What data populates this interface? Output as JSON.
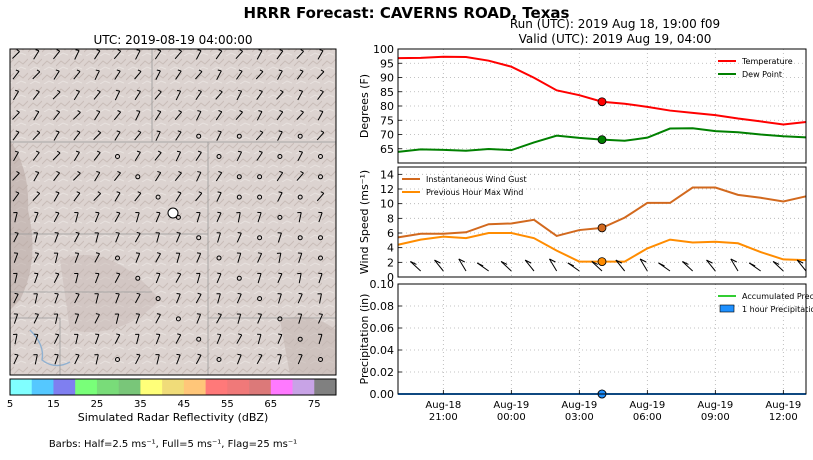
{
  "figure": {
    "title": "HRRR Forecast: CAVERNS ROAD, Texas",
    "map_title": "UTC: 2019-08-19 04:00:00",
    "run_line": "Run (UTC): 2019 Aug 18, 19:00 f09",
    "valid_line": "Valid (UTC): 2019 Aug 19, 04:00",
    "colorbar_label": "Simulated Radar Reflectivity (dBZ)",
    "colorbar_ticks": [
      "5",
      "15",
      "25",
      "35",
      "45",
      "55",
      "65",
      "75"
    ],
    "colorbar_colors": [
      "#80ffff",
      "#55c8ff",
      "#7f7ff0",
      "#79ff79",
      "#79dc79",
      "#79c679",
      "#ffff79",
      "#f0dc79",
      "#ffc679",
      "#ff7979",
      "#f07979",
      "#dc7979",
      "#ff79ff",
      "#c8a3e6",
      "#808080"
    ],
    "barbs_note": "Barbs: Half=2.5 ms⁻¹, Full=5 ms⁻¹, Flag=25 ms⁻¹"
  },
  "chart_data": [
    {
      "type": "line",
      "panel": "temperature",
      "x": [
        "2019-08-18 19:00",
        "2019-08-18 20:00",
        "2019-08-18 21:00",
        "2019-08-18 22:00",
        "2019-08-18 23:00",
        "2019-08-19 00:00",
        "2019-08-19 01:00",
        "2019-08-19 02:00",
        "2019-08-19 03:00",
        "2019-08-19 04:00",
        "2019-08-19 05:00",
        "2019-08-19 06:00",
        "2019-08-19 07:00",
        "2019-08-19 08:00",
        "2019-08-19 09:00",
        "2019-08-19 10:00",
        "2019-08-19 11:00",
        "2019-08-19 12:00",
        "2019-08-19 13:00"
      ],
      "series": [
        {
          "name": "Temperature",
          "color": "#ff0000",
          "values": [
            96.8,
            96.9,
            97.3,
            97.2,
            95.9,
            93.8,
            89.9,
            85.5,
            83.8,
            81.5,
            80.8,
            79.7,
            78.4,
            77.6,
            76.8,
            75.6,
            74.6,
            73.5,
            74.4
          ]
        },
        {
          "name": "Dew Point",
          "color": "#008000",
          "values": [
            63.9,
            64.8,
            64.6,
            64.3,
            64.9,
            64.5,
            67.2,
            69.6,
            68.8,
            68.2,
            67.8,
            68.9,
            72.1,
            72.2,
            71.2,
            70.8,
            70.0,
            69.4,
            69.0
          ]
        }
      ],
      "highlight_index": 9,
      "ylabel": "Degrees (F)",
      "ylim": [
        60,
        100
      ],
      "yticks": [
        "65",
        "70",
        "75",
        "80",
        "85",
        "90",
        "95",
        "100"
      ],
      "grid": true,
      "legend": "top-right"
    },
    {
      "type": "line",
      "panel": "wind",
      "x": [
        "2019-08-18 19:00",
        "2019-08-18 20:00",
        "2019-08-18 21:00",
        "2019-08-18 22:00",
        "2019-08-18 23:00",
        "2019-08-19 00:00",
        "2019-08-19 01:00",
        "2019-08-19 02:00",
        "2019-08-19 03:00",
        "2019-08-19 04:00",
        "2019-08-19 05:00",
        "2019-08-19 06:00",
        "2019-08-19 07:00",
        "2019-08-19 08:00",
        "2019-08-19 09:00",
        "2019-08-19 10:00",
        "2019-08-19 11:00",
        "2019-08-19 12:00",
        "2019-08-19 13:00"
      ],
      "series": [
        {
          "name": "Instantaneous Wind Gust",
          "color": "#d2691e",
          "values": [
            5.4,
            5.9,
            5.9,
            6.1,
            7.2,
            7.3,
            7.8,
            5.6,
            6.4,
            6.7,
            8.1,
            10.1,
            10.1,
            12.2,
            12.2,
            11.2,
            10.8,
            10.3,
            11.0
          ]
        },
        {
          "name": "Previous Hour Max Wind",
          "color": "#ff8c00",
          "values": [
            4.4,
            5.1,
            5.5,
            5.3,
            6.0,
            6.0,
            5.3,
            3.6,
            2.1,
            2.1,
            2.1,
            3.9,
            5.1,
            4.7,
            4.8,
            4.6,
            3.4,
            2.4,
            2.3
          ]
        }
      ],
      "highlight_index": 9,
      "ylabel": "Wind Speed (ms⁻¹)",
      "ylim": [
        0,
        15
      ],
      "yticks": [
        "0",
        "2",
        "4",
        "6",
        "8",
        "10",
        "12",
        "14"
      ],
      "grid": true,
      "legend": "top-left"
    },
    {
      "type": "area",
      "panel": "precipitation",
      "x": [
        "2019-08-18 19:00",
        "2019-08-18 20:00",
        "2019-08-18 21:00",
        "2019-08-18 22:00",
        "2019-08-18 23:00",
        "2019-08-19 00:00",
        "2019-08-19 01:00",
        "2019-08-19 02:00",
        "2019-08-19 03:00",
        "2019-08-19 04:00",
        "2019-08-19 05:00",
        "2019-08-19 06:00",
        "2019-08-19 07:00",
        "2019-08-19 08:00",
        "2019-08-19 09:00",
        "2019-08-19 10:00",
        "2019-08-19 11:00",
        "2019-08-19 12:00",
        "2019-08-19 13:00"
      ],
      "series": [
        {
          "name": "Accumulated Precipitation",
          "color": "#32cd32",
          "values": [
            0,
            0,
            0,
            0,
            0,
            0,
            0,
            0,
            0,
            0,
            0,
            0,
            0,
            0,
            0,
            0,
            0,
            0,
            0
          ]
        },
        {
          "name": "1 hour Precipitation",
          "color": "#1e90ff",
          "values": [
            0,
            0,
            0,
            0,
            0,
            0,
            0,
            0,
            0,
            0,
            0,
            0,
            0,
            0,
            0,
            0,
            0,
            0,
            0
          ]
        }
      ],
      "highlight_index": 9,
      "ylabel": "Precipitation (in)",
      "ylim": [
        0,
        0.1
      ],
      "yticks": [
        "0.00",
        "0.02",
        "0.04",
        "0.06",
        "0.08",
        "0.10"
      ],
      "xticks": [
        {
          "x": "2019-08-18 21:00",
          "l1": "Aug-18",
          "l2": "21:00"
        },
        {
          "x": "2019-08-19 00:00",
          "l1": "Aug-19",
          "l2": "00:00"
        },
        {
          "x": "2019-08-19 03:00",
          "l1": "Aug-19",
          "l2": "03:00"
        },
        {
          "x": "2019-08-19 06:00",
          "l1": "Aug-19",
          "l2": "06:00"
        },
        {
          "x": "2019-08-19 09:00",
          "l1": "Aug-19",
          "l2": "09:00"
        },
        {
          "x": "2019-08-19 12:00",
          "l1": "Aug-19",
          "l2": "12:00"
        }
      ],
      "grid": true,
      "legend": "top-right"
    }
  ]
}
